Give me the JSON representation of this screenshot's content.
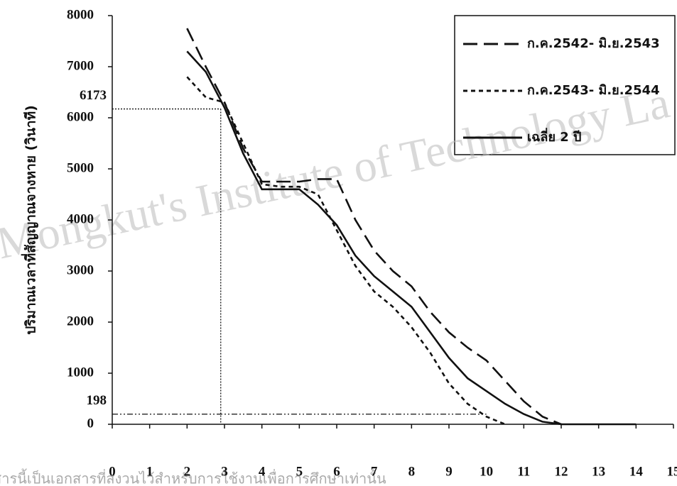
{
  "chart_data": {
    "type": "line",
    "y_label": "ปริมาณเวลาที่สัญญาณจางหาย (วินาที)",
    "x": [
      2,
      2.5,
      3,
      3.5,
      4,
      4.5,
      5,
      5.5,
      6,
      6.5,
      7,
      7.5,
      8,
      8.5,
      9,
      9.5,
      10,
      10.5,
      11,
      11.5,
      12,
      12.5,
      13,
      13.5,
      14
    ],
    "series": [
      {
        "name": "ก.ค.2542- มิ.ย.2543",
        "color": "#111111",
        "dash": "20,9",
        "values": [
          7750,
          7000,
          6300,
          5400,
          4750,
          4750,
          4750,
          4800,
          4800,
          4000,
          3400,
          3000,
          2700,
          2200,
          1800,
          1500,
          1250,
          850,
          450,
          150,
          0,
          null,
          null,
          null,
          null
        ]
      },
      {
        "name": "ก.ค.2543- มิ.ย.2544",
        "color": "#111111",
        "dash": "6,5",
        "values": [
          6800,
          6400,
          6300,
          5500,
          4700,
          4650,
          4650,
          4500,
          3800,
          3100,
          2600,
          2300,
          1900,
          1400,
          800,
          400,
          150,
          0,
          null,
          null,
          null,
          null,
          null,
          null,
          null
        ]
      },
      {
        "name": "เฉลี่ย 2 ปี",
        "color": "#111111",
        "dash": null,
        "values": [
          7300,
          6900,
          6200,
          5300,
          4600,
          4600,
          4600,
          4300,
          3900,
          3300,
          2900,
          2600,
          2300,
          1800,
          1300,
          900,
          650,
          400,
          200,
          50,
          0,
          0,
          0,
          0,
          0
        ]
      }
    ],
    "xlim": [
      0,
      15
    ],
    "xticks": [
      0,
      1,
      2,
      3,
      4,
      5,
      6,
      7,
      8,
      9,
      10,
      11,
      12,
      13,
      14,
      15
    ],
    "ylim": [
      0,
      8000
    ],
    "yticks": [
      0,
      1000,
      2000,
      3000,
      4000,
      5000,
      6000,
      7000,
      8000
    ],
    "annotations": [
      {
        "x": 2.9,
        "y": 6173
      },
      {
        "x": 10,
        "y": 198
      }
    ],
    "legend": "top-right",
    "watermark": [
      "Mongkut's Institute of Technology La",
      "สารนี้เป็นเอกสารที่สงวนไว้สำหรับการใช้งานเพื่อการศึกษาเท่านั้น"
    ]
  }
}
